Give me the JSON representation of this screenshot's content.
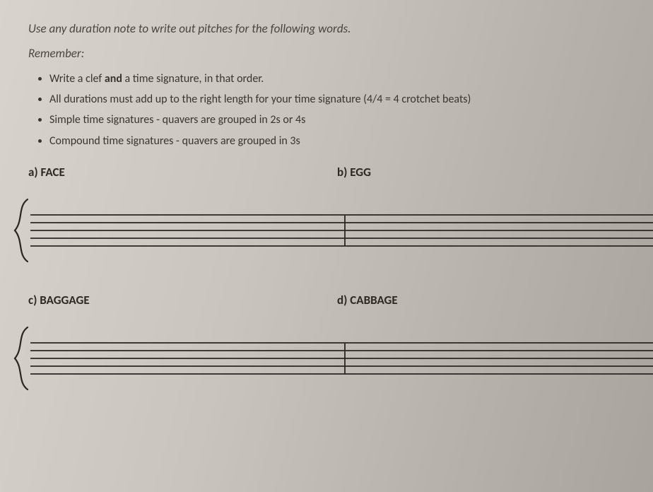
{
  "instruction": "Use any duration note to write out pitches for the following words.",
  "remember_label": "Remember:",
  "rules": [
    {
      "pre": "Write a clef ",
      "bold": "and",
      "post": " a time signature, in that order."
    },
    {
      "pre": "All durations must add up to the right length for your time signature (4/4 = 4 crotchet beats)",
      "bold": "",
      "post": ""
    },
    {
      "pre": "Simple time signatures - quavers are grouped in 2s or 4s",
      "bold": "",
      "post": ""
    },
    {
      "pre": "Compound time signatures - quavers are grouped in 3s",
      "bold": "",
      "post": ""
    }
  ],
  "exercises": {
    "a": {
      "id": "a)",
      "word": "FACE"
    },
    "b": {
      "id": "b)",
      "word": "EGG"
    },
    "c": {
      "id": "c)",
      "word": "BAGGAGE"
    },
    "d": {
      "id": "d)",
      "word": "CABBAGE"
    }
  },
  "staff": {
    "line_color": "#2a2622",
    "line_width": 1.8,
    "line_spacing": 11,
    "staff_height": 44,
    "bracket_color": "#2a2622",
    "bracket_width": 2.2,
    "bar_color": "#2a2622"
  }
}
